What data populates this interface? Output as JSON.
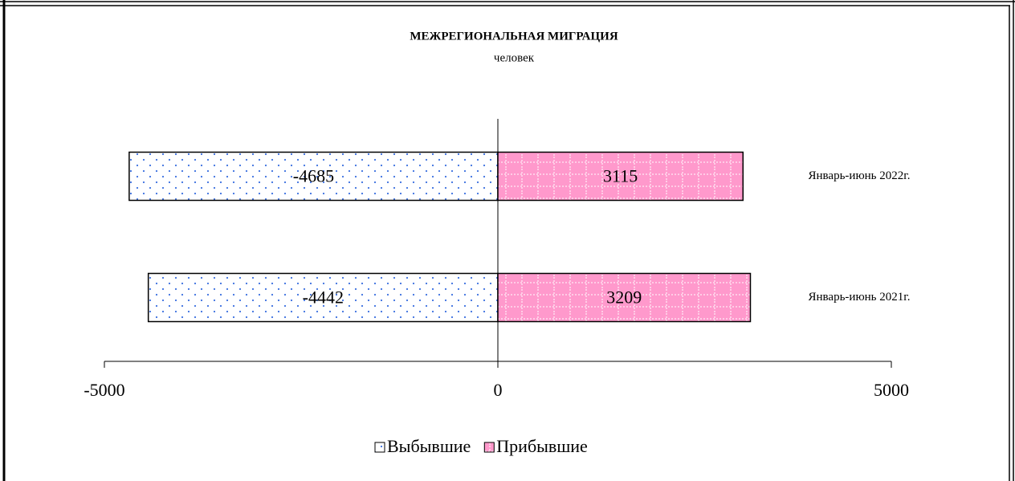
{
  "chart_data": {
    "type": "hbar_diverging",
    "title": "МЕЖРЕГИОНАЛЬНАЯ МИГРАЦИЯ",
    "subtitle": "человек",
    "categories": [
      "Январь-июнь 2022г.",
      "Январь-июнь 2021г."
    ],
    "series": [
      {
        "name": "Выбывшие",
        "color": "#ffffff",
        "values": [
          -4685,
          -4442
        ]
      },
      {
        "name": "Прибывшие",
        "color": "#ff99cc",
        "values": [
          3115,
          3209
        ]
      }
    ],
    "xlim": [
      -5000,
      5000
    ],
    "xticks": [
      -5000,
      0,
      5000
    ],
    "legend": "bottom"
  }
}
